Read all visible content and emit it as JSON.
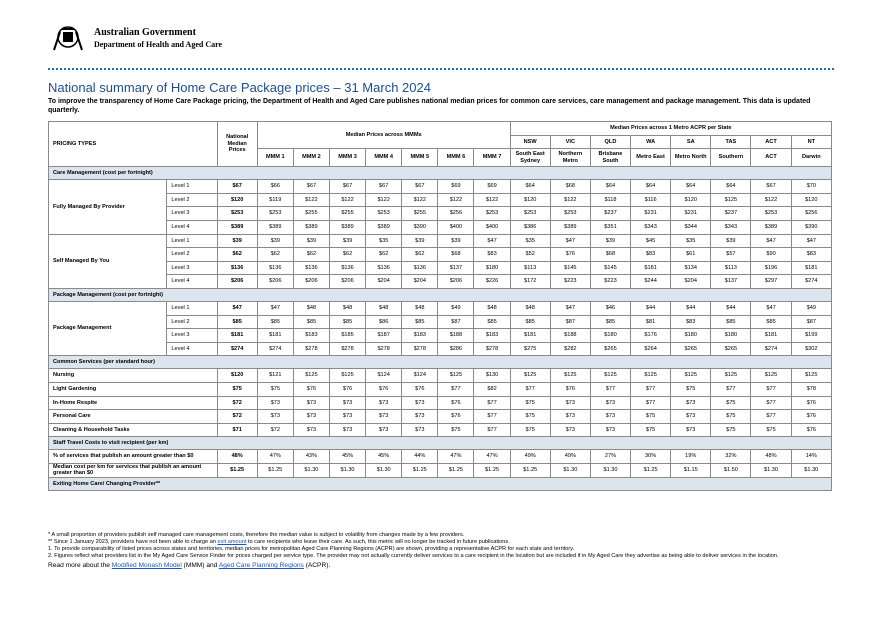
{
  "header": {
    "gov": "Australian Government",
    "dept": "Department of Health and Aged Care"
  },
  "title": "National summary of Home Care Package prices – 31 March 2024",
  "subtitle": "To improve the transparency of Home Care Package pricing, the Department of Health and Aged Care publishes national median prices for common care services, care management and package management. This data is updated quarterly.",
  "table": {
    "col_pricing": "PRICING TYPES",
    "col_national": "National Median Prices",
    "group_mmm": "Median Prices across MMMs",
    "mmm": [
      "MMM 1",
      "MMM 2",
      "MMM 3",
      "MMM 4",
      "MMM 5",
      "MMM 6",
      "MMM 7"
    ],
    "group_states": "Median Prices across 1 Metro ACPR per State",
    "states": [
      {
        "state": "NSW",
        "region": "South East Sydney"
      },
      {
        "state": "VIC",
        "region": "Northern Metro"
      },
      {
        "state": "QLD",
        "region": "Brisbane South"
      },
      {
        "state": "WA",
        "region": "Metro East"
      },
      {
        "state": "SA",
        "region": "Metro North"
      },
      {
        "state": "TAS",
        "region": "Southern"
      },
      {
        "state": "ACT",
        "region": "ACT"
      },
      {
        "state": "NT",
        "region": "Darwin"
      }
    ],
    "sections": [
      {
        "heading": "Care Management (cost per fortnight)",
        "groups": [
          {
            "name": "Fully Managed By Provider",
            "rows": [
              {
                "level": "Level 1",
                "values": [
                  "$67",
                  "$66",
                  "$67",
                  "$67",
                  "$67",
                  "$67",
                  "$69",
                  "$69",
                  "$64",
                  "$68",
                  "$64",
                  "$64",
                  "$64",
                  "$64",
                  "$67",
                  "$70"
                ]
              },
              {
                "level": "Level 2",
                "values": [
                  "$120",
                  "$119",
                  "$122",
                  "$122",
                  "$122",
                  "$122",
                  "$122",
                  "$122",
                  "$120",
                  "$122",
                  "$118",
                  "$116",
                  "$120",
                  "$125",
                  "$122",
                  "$120"
                ]
              },
              {
                "level": "Level 3",
                "values": [
                  "$253",
                  "$253",
                  "$255",
                  "$255",
                  "$253",
                  "$255",
                  "$256",
                  "$253",
                  "$253",
                  "$253",
                  "$237",
                  "$231",
                  "$231",
                  "$237",
                  "$253",
                  "$256"
                ]
              },
              {
                "level": "Level 4",
                "values": [
                  "$389",
                  "$389",
                  "$389",
                  "$389",
                  "$389",
                  "$390",
                  "$400",
                  "$400",
                  "$386",
                  "$389",
                  "$351",
                  "$343",
                  "$344",
                  "$343",
                  "$389",
                  "$390"
                ]
              }
            ]
          },
          {
            "name": "Self Managed By You",
            "rows": [
              {
                "level": "Level 1",
                "values": [
                  "$39",
                  "$39",
                  "$39",
                  "$39",
                  "$35",
                  "$39",
                  "$39",
                  "$47",
                  "$35",
                  "$47",
                  "$39",
                  "$45",
                  "$35",
                  "$39",
                  "$47",
                  "$47"
                ]
              },
              {
                "level": "Level 2",
                "values": [
                  "$62",
                  "$62",
                  "$62",
                  "$62",
                  "$62",
                  "$62",
                  "$68",
                  "$83",
                  "$52",
                  "$76",
                  "$68",
                  "$83",
                  "$61",
                  "$57",
                  "$90",
                  "$83"
                ]
              },
              {
                "level": "Level 3",
                "values": [
                  "$136",
                  "$136",
                  "$136",
                  "$136",
                  "$136",
                  "$136",
                  "$137",
                  "$180",
                  "$113",
                  "$145",
                  "$145",
                  "$181",
                  "$134",
                  "$113",
                  "$196",
                  "$181"
                ]
              },
              {
                "level": "Level 4",
                "values": [
                  "$206",
                  "$206",
                  "$206",
                  "$206",
                  "$204",
                  "$204",
                  "$206",
                  "$226",
                  "$172",
                  "$223",
                  "$223",
                  "$244",
                  "$204",
                  "$137",
                  "$297",
                  "$274"
                ]
              }
            ]
          }
        ]
      },
      {
        "heading": "Package Management (cost per fortnight)",
        "groups": [
          {
            "name": "Package Management",
            "rows": [
              {
                "level": "Level 1",
                "values": [
                  "$47",
                  "$47",
                  "$48",
                  "$48",
                  "$48",
                  "$48",
                  "$49",
                  "$48",
                  "$48",
                  "$47",
                  "$46",
                  "$44",
                  "$44",
                  "$44",
                  "$47",
                  "$49"
                ]
              },
              {
                "level": "Level 2",
                "values": [
                  "$85",
                  "$85",
                  "$85",
                  "$85",
                  "$86",
                  "$85",
                  "$87",
                  "$85",
                  "$85",
                  "$87",
                  "$85",
                  "$81",
                  "$83",
                  "$85",
                  "$85",
                  "$87"
                ]
              },
              {
                "level": "Level 3",
                "values": [
                  "$181",
                  "$181",
                  "$183",
                  "$185",
                  "$187",
                  "$183",
                  "$188",
                  "$183",
                  "$181",
                  "$188",
                  "$180",
                  "$176",
                  "$180",
                  "$180",
                  "$181",
                  "$199"
                ]
              },
              {
                "level": "Level 4",
                "values": [
                  "$274",
                  "$274",
                  "$278",
                  "$278",
                  "$278",
                  "$278",
                  "$286",
                  "$278",
                  "$275",
                  "$282",
                  "$265",
                  "$264",
                  "$265",
                  "$265",
                  "$274",
                  "$302"
                ]
              }
            ]
          }
        ]
      },
      {
        "heading": "Common Services (per standard hour)",
        "groups": [
          {
            "name": "Nursing",
            "values": [
              "$120",
              "$121",
              "$125",
              "$125",
              "$124",
              "$124",
              "$125",
              "$130",
              "$125",
              "$125",
              "$125",
              "$125",
              "$125",
              "$125",
              "$125",
              "$125"
            ]
          },
          {
            "name": "Light Gardening",
            "values": [
              "$75",
              "$75",
              "$76",
              "$76",
              "$76",
              "$76",
              "$77",
              "$82",
              "$77",
              "$76",
              "$77",
              "$77",
              "$75",
              "$77",
              "$77",
              "$78"
            ]
          },
          {
            "name": "In-Home Respite",
            "values": [
              "$72",
              "$73",
              "$73",
              "$73",
              "$73",
              "$73",
              "$76",
              "$77",
              "$75",
              "$73",
              "$73",
              "$77",
              "$73",
              "$75",
              "$77",
              "$76"
            ]
          },
          {
            "name": "Personal Care",
            "values": [
              "$72",
              "$73",
              "$73",
              "$73",
              "$73",
              "$73",
              "$76",
              "$77",
              "$75",
              "$73",
              "$73",
              "$75",
              "$73",
              "$75",
              "$77",
              "$76"
            ]
          },
          {
            "name": "Cleaning & Household Tasks",
            "values": [
              "$71",
              "$72",
              "$73",
              "$73",
              "$73",
              "$73",
              "$75",
              "$77",
              "$75",
              "$73",
              "$73",
              "$75",
              "$73",
              "$75",
              "$75",
              "$76"
            ]
          }
        ]
      },
      {
        "heading": "Staff Travel Costs to visit recipient (per km)",
        "groups": [
          {
            "name": "% of services that publish an amount greater than $0",
            "values": [
              "48%",
              "47%",
              "43%",
              "45%",
              "45%",
              "44%",
              "47%",
              "47%",
              "49%",
              "49%",
              "27%",
              "30%",
              "19%",
              "32%",
              "48%",
              "14%"
            ]
          },
          {
            "name": "Median cost per km for services that publish an amount greater than $0",
            "values": [
              "$1.25",
              "$1.25",
              "$1.30",
              "$1.30",
              "$1.30",
              "$1.25",
              "$1.25",
              "$1.25",
              "$1.25",
              "$1.30",
              "$1.30",
              "$1.25",
              "$1.15",
              "$1.50",
              "$1.30",
              "$1.30"
            ]
          }
        ]
      },
      {
        "heading": "Exiting Home Care/ Changing Provider**",
        "groups": []
      }
    ]
  },
  "footnotes": [
    [
      {
        "text": "* A small proportion of providers publish self managed care management costs, therefore the median value is subject to volatility from changes made by a few providers."
      }
    ],
    [
      {
        "text": "** Since 1 January 2023, providers have not been able to charge an "
      },
      {
        "link": "exit amount"
      },
      {
        "text": " to care recipients who leave their care. As such, this metric will no longer be tracked in future publications."
      }
    ],
    [
      {
        "text": "1.   To provide comparability of listed prices across states and territories, median prices for metropolitan Aged Care Planning Regions (ACPR) are shown, providing a representative ACPR for each state and territory."
      }
    ],
    [
      {
        "text": "2.   Figures reflect what providers list in the My Aged Care Service Finder for prices charged per service type. The provider may not actually currently deliver services to a care recipient in the location but are included if in My Aged Care they advertise as being able to deliver services in the location."
      }
    ]
  ],
  "readmore": [
    {
      "text": "Read more about the "
    },
    {
      "link": "Modified Monash Model"
    },
    {
      "text": " (MMM) and "
    },
    {
      "link": "Aged Care Planning Regions"
    },
    {
      "text": " (ACPR)."
    }
  ]
}
